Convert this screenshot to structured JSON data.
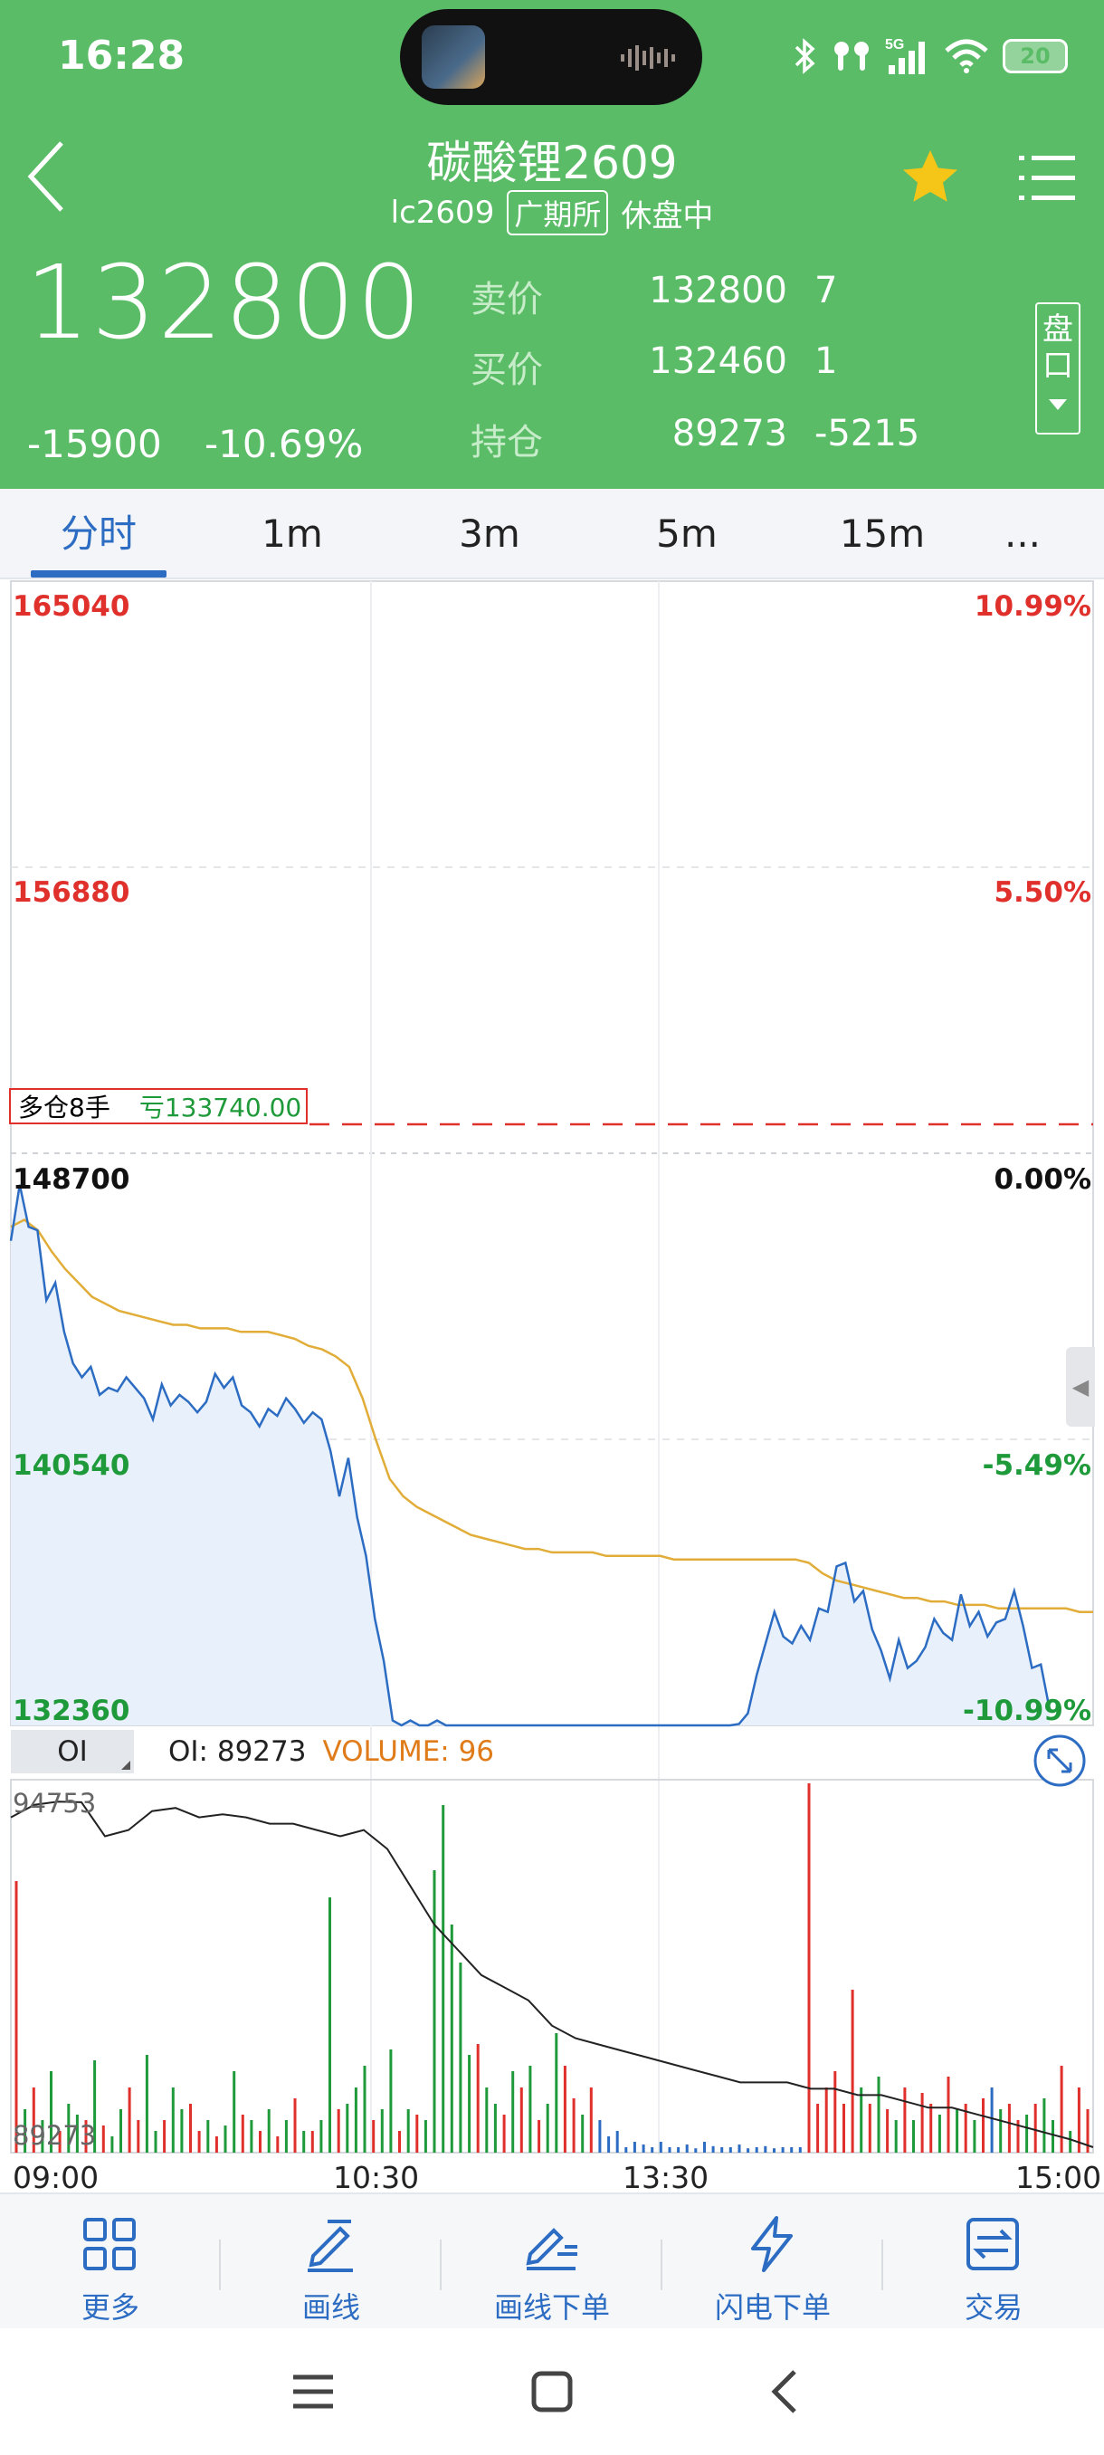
{
  "status": {
    "time": "16:28",
    "battery": "20",
    "network": "5G"
  },
  "header": {
    "title": "碳酸锂2609",
    "code": "lc2609",
    "exchange": "广期所",
    "state": "休盘中",
    "last_price": "132800",
    "change": "-15900",
    "change_pct": "-10.69%",
    "quotes": [
      {
        "label": "卖价",
        "v1": "132800",
        "v2": "7"
      },
      {
        "label": "买价",
        "v1": "132460",
        "v2": "1"
      },
      {
        "label": "持仓",
        "v1": "89273",
        "v2": "-5215"
      }
    ],
    "pankou": "盘口",
    "colors": {
      "bar_bg": "#5bbc67",
      "star": "#f5c518"
    }
  },
  "tabs": [
    "分时",
    "1m",
    "3m",
    "5m",
    "15m",
    "..."
  ],
  "chart_data": [
    {
      "type": "line",
      "title": "",
      "price_labels": [
        "165040",
        "156880",
        "148700",
        "140540",
        "132360"
      ],
      "pct_labels": [
        "10.99%",
        "5.50%",
        "0.00%",
        "-5.49%",
        "-10.99%"
      ],
      "ylim": [
        132360,
        165040
      ],
      "reference_price": 148700,
      "x_ticks": [
        "09:00",
        "10:30",
        "13:30",
        "15:00"
      ],
      "series": [
        {
          "color": "#2c6cc2",
          "values": [
            146200,
            147800,
            146600,
            146500,
            144500,
            145000,
            143600,
            142700,
            142300,
            142600,
            141800,
            142000,
            141900,
            142300,
            142000,
            141700,
            141100,
            142100,
            141500,
            141800,
            141600,
            141300,
            141600,
            142400,
            142000,
            142300,
            141500,
            141300,
            140900,
            141400,
            141200,
            141700,
            141400,
            141000,
            141300,
            141100,
            140200,
            138900,
            140000,
            138300,
            137200,
            135400,
            134200,
            132500,
            132360,
            132500,
            132360,
            132360,
            132500,
            132360,
            132360,
            132360,
            132360,
            132360,
            132360,
            132360,
            132360,
            132360,
            132360,
            132360,
            132360,
            132360,
            132360,
            132360,
            132360,
            132360,
            132360,
            132360,
            132360,
            132360,
            132360,
            132360,
            132360,
            132360,
            132360,
            132360,
            132360,
            132360,
            132360,
            132360,
            132360,
            132360,
            132400,
            132700,
            133800,
            134700,
            135600,
            134900,
            134700,
            135200,
            134800,
            135700,
            135600,
            136900,
            137000,
            135900,
            136200,
            135100,
            134500,
            133700,
            134800,
            134000,
            134200,
            134600,
            135400,
            135000,
            134800,
            136100,
            135200,
            135600,
            134900,
            135300,
            135400,
            136200,
            135200,
            134000,
            134100,
            132800
          ]
        },
        {
          "color": "#e1ad38",
          "values": [
            146600,
            146800,
            146500,
            145900,
            145400,
            145000,
            144600,
            144400,
            144200,
            144100,
            144000,
            143900,
            143800,
            143800,
            143700,
            143700,
            143700,
            143600,
            143600,
            143600,
            143500,
            143400,
            143200,
            143100,
            142900,
            142600,
            141700,
            140500,
            139400,
            138900,
            138600,
            138400,
            138200,
            138000,
            137800,
            137700,
            137600,
            137500,
            137400,
            137400,
            137300,
            137300,
            137300,
            137300,
            137200,
            137200,
            137200,
            137200,
            137200,
            137100,
            137100,
            137100,
            137100,
            137100,
            137100,
            137100,
            137100,
            137100,
            137100,
            137000,
            136700,
            136500,
            136400,
            136300,
            136200,
            136100,
            136000,
            136000,
            135900,
            135900,
            135800,
            135800,
            135800,
            135700,
            135700,
            135700,
            135700,
            135700,
            135700,
            135600,
            135600
          ]
        }
      ]
    },
    {
      "type": "bar",
      "title": "",
      "indicator": "OI",
      "oi_label": "OI: 89273",
      "volume_label": "VOLUME: 96",
      "oi_max_label": "94753",
      "oi_min_label": "89273",
      "oi_range": [
        89273,
        94753
      ],
      "oi_line_color": "#222222",
      "up_color": "#e0302c",
      "down_color": "#1f9a3a",
      "flat_color": "#2c6cc2",
      "oi_values": [
        94500,
        94700,
        94750,
        94740,
        94200,
        94300,
        94600,
        94650,
        94500,
        94550,
        94500,
        94400,
        94400,
        94300,
        94200,
        94300,
        94000,
        93400,
        92800,
        92400,
        92000,
        91800,
        91600,
        91200,
        91000,
        90900,
        90800,
        90700,
        90600,
        90500,
        90400,
        90300,
        90300,
        90300,
        90200,
        90200,
        90100,
        90100,
        90000,
        89900,
        89900,
        89800,
        89700,
        89600,
        89500,
        89400,
        89273
      ],
      "volume_values": [
        500,
        80,
        120,
        60,
        150,
        40,
        90,
        70,
        60,
        170,
        50,
        30,
        80,
        120,
        60,
        180,
        40,
        60,
        120,
        80,
        90,
        40,
        60,
        30,
        50,
        150,
        70,
        60,
        40,
        80,
        30,
        60,
        100,
        40,
        40,
        60,
        470,
        80,
        90,
        120,
        160,
        60,
        80,
        190,
        40,
        80,
        70,
        60,
        520,
        640,
        420,
        350,
        180,
        200,
        120,
        90,
        70,
        150,
        120,
        160,
        60,
        90,
        220,
        160,
        100,
        70,
        120,
        60,
        30,
        40,
        10,
        20,
        15,
        10,
        20,
        10,
        10,
        15,
        8,
        20,
        12,
        10,
        10,
        15,
        8,
        10,
        12,
        8,
        10,
        10,
        10,
        680,
        90,
        120,
        150,
        90,
        300,
        120,
        90,
        140,
        80,
        60,
        120,
        60,
        110,
        90,
        70,
        140,
        80,
        90,
        60,
        100,
        120,
        80,
        90,
        60,
        70,
        90,
        100,
        60,
        160,
        40,
        120,
        80
      ],
      "volume_colors": [
        "r",
        "g",
        "r",
        "g",
        "g",
        "r",
        "g",
        "g",
        "r",
        "g",
        "r",
        "g",
        "g",
        "r",
        "r",
        "g",
        "g",
        "r",
        "g",
        "g",
        "r",
        "r",
        "g",
        "r",
        "g",
        "g",
        "r",
        "g",
        "r",
        "g",
        "r",
        "g",
        "r",
        "g",
        "r",
        "g",
        "g",
        "r",
        "g",
        "g",
        "g",
        "r",
        "g",
        "g",
        "r",
        "g",
        "r",
        "g",
        "g",
        "g",
        "g",
        "g",
        "g",
        "r",
        "g",
        "g",
        "r",
        "g",
        "r",
        "g",
        "r",
        "g",
        "g",
        "r",
        "r",
        "g",
        "r",
        "b",
        "b",
        "b",
        "b",
        "b",
        "b",
        "b",
        "b",
        "b",
        "b",
        "b",
        "b",
        "b",
        "b",
        "b",
        "b",
        "b",
        "b",
        "b",
        "b",
        "b",
        "b",
        "b",
        "b",
        "r",
        "r",
        "r",
        "r",
        "r",
        "r",
        "g",
        "r",
        "g",
        "r",
        "g",
        "r",
        "g",
        "r",
        "r",
        "g",
        "r",
        "g",
        "r",
        "g",
        "r",
        "b",
        "g",
        "r",
        "r",
        "g",
        "r",
        "g",
        "g",
        "r",
        "g",
        "r",
        "r"
      ]
    }
  ],
  "position_marker": {
    "label": "多仓8手",
    "pnl": "亏133740.00"
  },
  "toolbar": [
    {
      "label": "更多",
      "icon": "grid-icon"
    },
    {
      "label": "画线",
      "icon": "pen-icon"
    },
    {
      "label": "画线下单",
      "icon": "pen-order-icon"
    },
    {
      "label": "闪电下单",
      "icon": "lightning-icon"
    },
    {
      "label": "交易",
      "icon": "trade-icon"
    }
  ]
}
